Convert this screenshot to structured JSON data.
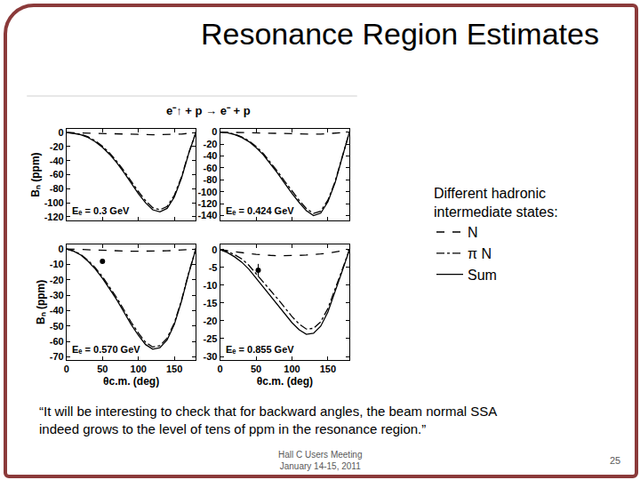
{
  "title": "Resonance Region Estimates",
  "figure_title": "e⁻↑ + p → e⁻ + p",
  "legend_title": [
    "Different hadronic",
    "intermediate states:"
  ],
  "quote": [
    "“It will be interesting to check that for backward angles, the beam normal SSA",
    "indeed grows to the level of tens of ppm in the resonance region.”"
  ],
  "footer": [
    "Hall C Users Meeting",
    "January 14-15, 2011"
  ],
  "page": 25,
  "chart_data": [
    {
      "type": "line",
      "annotation": "Eₑ = 0.3 GeV",
      "y_label": "Bₙ (ppm)",
      "legend": "right",
      "grid": false,
      "tick_labels": "y",
      "x": [
        0,
        10,
        20,
        30,
        40,
        50,
        60,
        70,
        80,
        90,
        100,
        110,
        120,
        130,
        140,
        150,
        160,
        170,
        180
      ],
      "xlim": [
        0,
        180
      ],
      "xticks": [
        0,
        50,
        100,
        150
      ],
      "ylim": [
        -125,
        5
      ],
      "yticks": [
        0,
        -20,
        -40,
        -60,
        -80,
        -100,
        -120
      ],
      "series": [
        {
          "name": "N",
          "color": "#000000",
          "line_style": "dash",
          "values": [
            0,
            -0.3,
            -0.6,
            -1,
            -1.3,
            -1.6,
            -2,
            -2.2,
            -2.5,
            -2.7,
            -3,
            -3,
            -3,
            -3,
            -2.8,
            -2.5,
            -2,
            -1,
            0
          ]
        },
        {
          "name": "π N",
          "color": "#000000",
          "line_style": "dashdot",
          "values": [
            0,
            -0.7,
            -2.4,
            -6,
            -11.7,
            -19.4,
            -29,
            -41,
            -54.5,
            -69.3,
            -84,
            -97,
            -107,
            -110,
            -105.2,
            -89.5,
            -63,
            -29,
            0
          ]
        },
        {
          "name": "Sum",
          "color": "#000000",
          "line_style": "solid",
          "values": [
            0,
            -1,
            -3,
            -7,
            -13,
            -21,
            -31,
            -43,
            -57,
            -72,
            -87,
            -100,
            -110,
            -113,
            -108,
            -92,
            -65,
            -30,
            0
          ]
        }
      ]
    },
    {
      "type": "line",
      "annotation": "Eₑ = 0.424 GeV",
      "grid": false,
      "tick_labels": "y",
      "x": [
        0,
        10,
        20,
        30,
        40,
        50,
        60,
        70,
        80,
        90,
        100,
        110,
        120,
        130,
        140,
        150,
        160,
        170,
        180
      ],
      "xlim": [
        0,
        180
      ],
      "xticks": [
        0,
        50,
        100,
        150
      ],
      "ylim": [
        -148,
        5
      ],
      "yticks": [
        0,
        -20,
        -40,
        -60,
        -80,
        -100,
        -120,
        -140
      ],
      "series": [
        {
          "name": "N",
          "color": "#000000",
          "line_style": "dash",
          "values": [
            0,
            -0.3,
            -0.7,
            -1,
            -1.4,
            -1.8,
            -2.2,
            -2.6,
            -3,
            -3.3,
            -3.5,
            -3.6,
            -3.6,
            -3.5,
            -3.3,
            -2.8,
            -2,
            -1,
            0
          ]
        },
        {
          "name": "π N",
          "color": "#000000",
          "line_style": "dashdot",
          "values": [
            0,
            -0.7,
            -3.3,
            -8,
            -14.6,
            -24.2,
            -35.8,
            -50.4,
            -66,
            -82.7,
            -99.5,
            -114.4,
            -128.4,
            -136.5,
            -132.7,
            -114.2,
            -83,
            -41,
            0
          ]
        },
        {
          "name": "Sum",
          "color": "#000000",
          "line_style": "solid",
          "values": [
            0,
            -1,
            -4,
            -9,
            -16,
            -26,
            -38,
            -53,
            -69,
            -86,
            -103,
            -118,
            -132,
            -140,
            -136,
            -117,
            -85,
            -42,
            0
          ]
        }
      ]
    },
    {
      "type": "line",
      "annotation": "Eₑ = 0.570 GeV",
      "x_label": "θc.m. (deg)",
      "y_label": "Bₙ (ppm)",
      "grid": false,
      "x": [
        0,
        10,
        20,
        30,
        40,
        50,
        60,
        70,
        80,
        90,
        100,
        110,
        120,
        130,
        140,
        150,
        160,
        170,
        180
      ],
      "xlim": [
        0,
        180
      ],
      "xticks": [
        0,
        50,
        100,
        150
      ],
      "ylim": [
        -72,
        3
      ],
      "yticks": [
        0,
        -10,
        -20,
        -30,
        -40,
        -50,
        -60,
        -70
      ],
      "series": [
        {
          "name": "N",
          "color": "#000000",
          "line_style": "dash",
          "values": [
            0,
            -0.2,
            -0.4,
            -0.6,
            -0.8,
            -1,
            -1.2,
            -1.3,
            -1.4,
            -1.5,
            -1.5,
            -1.5,
            -1.4,
            -1.3,
            -1.2,
            -1,
            -0.7,
            -0.4,
            0
          ]
        },
        {
          "name": "π N",
          "color": "#000000",
          "line_style": "dashdot",
          "values": [
            0,
            -1.3,
            -3.6,
            -7.4,
            -12.2,
            -18,
            -24.8,
            -31.7,
            -39.6,
            -47.5,
            -54.5,
            -60.5,
            -63.6,
            -62.7,
            -57.8,
            -48,
            -33.3,
            -15.6,
            0
          ]
        },
        {
          "name": "Sum",
          "color": "#000000",
          "line_style": "solid",
          "values": [
            0,
            -1.5,
            -4,
            -8,
            -13,
            -19,
            -26,
            -33,
            -41,
            -49,
            -56,
            -62,
            -65,
            -64,
            -59,
            -49,
            -34,
            -16,
            0
          ]
        }
      ],
      "data_points": {
        "x": [
          50
        ],
        "values": [
          -8
        ],
        "error": [
          0.5
        ],
        "color": "#000000",
        "marker": "circle"
      }
    },
    {
      "type": "line",
      "annotation": "Eₑ = 0.855 GeV",
      "x_label": "θc.m. (deg)",
      "grid": false,
      "x": [
        0,
        10,
        20,
        30,
        40,
        50,
        60,
        70,
        80,
        90,
        100,
        110,
        120,
        130,
        140,
        150,
        160,
        170,
        180
      ],
      "xlim": [
        0,
        180
      ],
      "xticks": [
        0,
        50,
        100,
        150
      ],
      "ylim": [
        -31,
        1.5
      ],
      "yticks": [
        0,
        -5,
        -10,
        -15,
        -20,
        -25,
        -30
      ],
      "series": [
        {
          "name": "N",
          "color": "#000000",
          "line_style": "dash",
          "values": [
            0,
            -0.3,
            -0.6,
            -0.9,
            -1.1,
            -1.3,
            -1.5,
            -1.6,
            -1.7,
            -1.7,
            -1.7,
            -1.6,
            -1.5,
            -1.4,
            -1.2,
            -1,
            -0.7,
            -0.4,
            0
          ]
        },
        {
          "name": "π N",
          "color": "#000000",
          "line_style": "dashdot",
          "values": [
            0,
            -0.5,
            -1.4,
            -2.6,
            -4.4,
            -6.7,
            -9,
            -11.4,
            -13.8,
            -16.3,
            -18.8,
            -20.9,
            -22.3,
            -22.1,
            -20.3,
            -16.5,
            -11.3,
            -5.6,
            0
          ]
        },
        {
          "name": "Sum",
          "color": "#000000",
          "line_style": "solid",
          "values": [
            0,
            -0.8,
            -2,
            -3.5,
            -5.5,
            -8,
            -10.5,
            -13,
            -15.5,
            -18,
            -20.5,
            -22.5,
            -23.8,
            -23.5,
            -21.5,
            -17.5,
            -12,
            -6,
            0
          ]
        }
      ],
      "data_points": {
        "x": [
          53
        ],
        "values": [
          -5.8
        ],
        "error": [
          1.8
        ],
        "color": "#000000",
        "marker": "circle"
      }
    }
  ]
}
